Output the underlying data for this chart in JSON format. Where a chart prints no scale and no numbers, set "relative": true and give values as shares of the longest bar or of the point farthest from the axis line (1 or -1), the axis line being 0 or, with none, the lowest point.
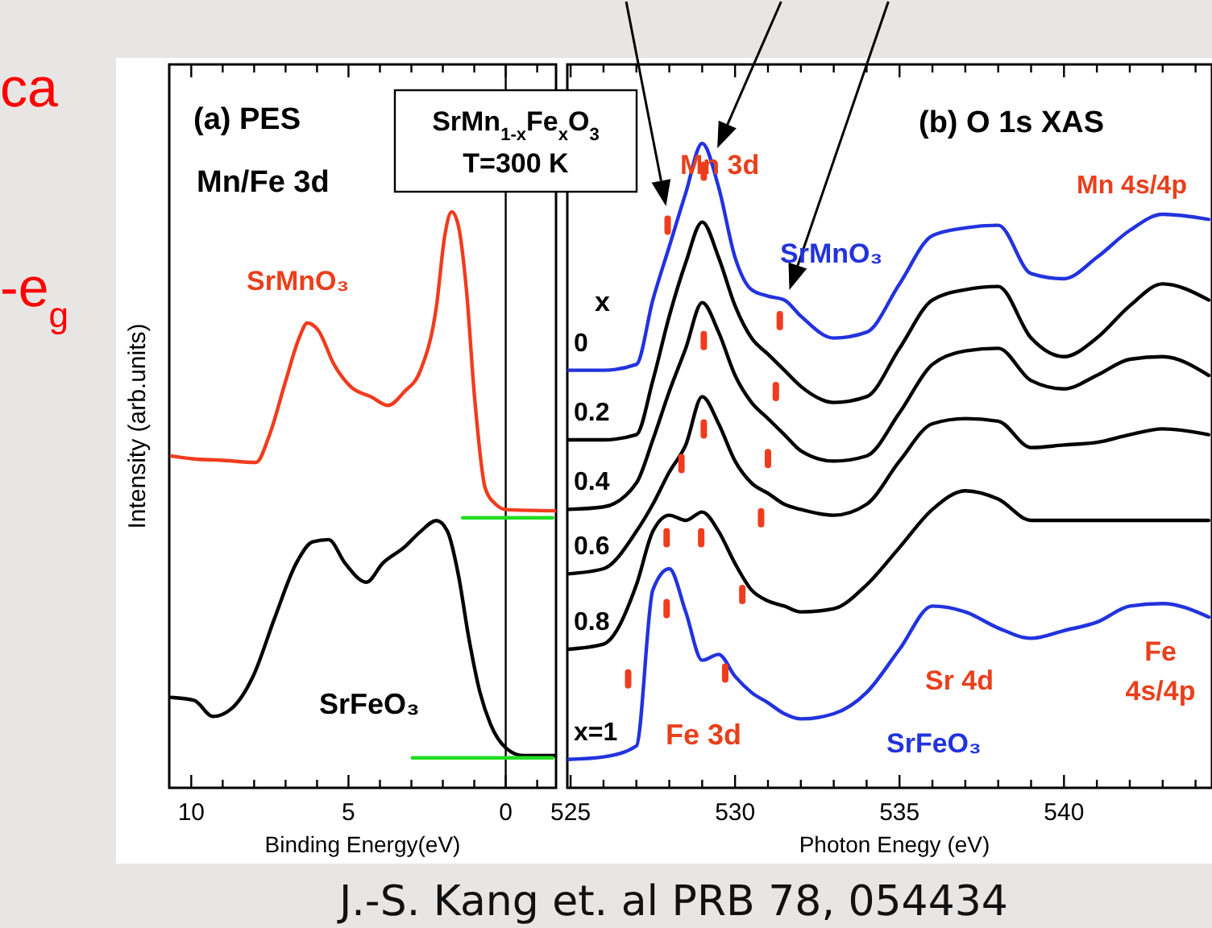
{
  "chart_data": [
    {
      "type": "line",
      "relative": true,
      "xlabel": "Binding Energy(eV)",
      "ylabel": "Intensity (arb.units)",
      "xlim": [
        10.7,
        -1.6
      ],
      "xticks": [
        10,
        {
          "value": 9,
          "label": null
        },
        {
          "value": 8,
          "label": null
        },
        {
          "value": 7,
          "label": null
        },
        {
          "value": 6,
          "label": null
        },
        5,
        {
          "value": 4,
          "label": null
        },
        {
          "value": 3,
          "label": null
        },
        {
          "value": 2,
          "label": null
        },
        {
          "value": 1,
          "label": null
        },
        0,
        {
          "value": -1,
          "label": null
        }
      ],
      "tick_labels": "x",
      "series": [
        {
          "color": "#f03c1e",
          "x": [
            10.63,
            9.91,
            9.06,
            7.94,
            7.51,
            7.0,
            6.57,
            6.31,
            5.97,
            5.45,
            4.94,
            4.25,
            3.74,
            3.22,
            2.71,
            2.2,
            1.94,
            1.72,
            1.51,
            1.25,
            0.99,
            0.65,
            0.31,
            -0.03,
            -1.58
          ],
          "values": [
            0.576,
            0.571,
            0.569,
            0.565,
            0.613,
            0.706,
            0.781,
            0.807,
            0.795,
            0.734,
            0.697,
            0.678,
            0.664,
            0.688,
            0.725,
            0.837,
            0.958,
            1,
            0.977,
            0.865,
            0.678,
            0.52,
            0.492,
            0.483,
            0.481
          ]
        },
        {
          "color": "#000000",
          "x": [
            10.63,
            9.91,
            9.31,
            8.71,
            8.03,
            7.34,
            6.66,
            6.14,
            5.63,
            5.11,
            4.43,
            3.91,
            3.22,
            2.71,
            2.2,
            1.85,
            1.51,
            1.17,
            0.82,
            0.48,
            -0.03,
            -0.55,
            -1.58
          ],
          "values": [
            0.157,
            0.152,
            0.124,
            0.138,
            0.194,
            0.296,
            0.39,
            0.427,
            0.431,
            0.39,
            0.357,
            0.39,
            0.418,
            0.445,
            0.464,
            0.445,
            0.371,
            0.259,
            0.166,
            0.11,
            0.068,
            0.056,
            0.056
          ]
        },
        {
          "color": "#22dd22",
          "x": [
            1.37,
            -1.49
          ],
          "values": [
            0.469,
            0.469
          ]
        },
        {
          "color": "#22dd22",
          "x": [
            2.97,
            -1.49
          ],
          "values": [
            0.052,
            0.052
          ]
        }
      ],
      "ref_lines": [
        {
          "axis": "x",
          "value": 0,
          "color": "#000000"
        }
      ],
      "annotations": [
        "(a) PES",
        "Mn/Fe 3d",
        "SrMnO₃",
        "SrFeO₃",
        "SrMn$_{1-x}$Fe$_{x}$O$_{3}$",
        "T=300 K",
        "ca",
        "-e$_{g}$",
        "J.-S. Kang et. al PRB 78, 054434"
      ]
    },
    {
      "type": "line",
      "relative": true,
      "xlabel": "Photon Enegy (eV)",
      "xlim": [
        524.9,
        544.5
      ],
      "xticks": [
        525,
        {
          "value": 526,
          "label": null
        },
        {
          "value": 527,
          "label": null
        },
        {
          "value": 528,
          "label": null
        },
        {
          "value": 529,
          "label": null
        },
        530,
        {
          "value": 531,
          "label": null
        },
        {
          "value": 532,
          "label": null
        },
        {
          "value": 533,
          "label": null
        },
        {
          "value": 534,
          "label": null
        },
        535,
        {
          "value": 536,
          "label": null
        },
        {
          "value": 537,
          "label": null
        },
        {
          "value": 538,
          "label": null
        },
        {
          "value": 539,
          "label": null
        },
        540,
        {
          "value": 541,
          "label": null
        },
        {
          "value": 542,
          "label": null
        },
        {
          "value": 543,
          "label": null
        },
        {
          "value": 544,
          "label": null
        }
      ],
      "tick_labels": "x",
      "x": [
        524.9,
        526,
        527,
        527.5,
        528,
        528.5,
        529,
        529.5,
        530,
        530.5,
        531,
        531.5,
        532,
        533,
        534,
        535,
        536,
        537,
        538,
        539,
        540,
        541,
        542,
        543,
        544.4
      ],
      "series": [
        {
          "name": "0",
          "color": "#2233dd",
          "values": [
            0.648,
            0.648,
            0.657,
            0.757,
            0.84,
            0.923,
            1,
            0.932,
            0.823,
            0.773,
            0.763,
            0.757,
            0.732,
            0.698,
            0.707,
            0.782,
            0.857,
            0.869,
            0.873,
            0.798,
            0.79,
            0.823,
            0.865,
            0.89,
            0.882
          ]
        },
        {
          "name": "0.2",
          "color": "#000000",
          "values": [
            0.54,
            0.54,
            0.548,
            0.632,
            0.732,
            0.815,
            0.878,
            0.823,
            0.748,
            0.698,
            0.673,
            0.648,
            0.623,
            0.598,
            0.607,
            0.682,
            0.757,
            0.773,
            0.778,
            0.698,
            0.669,
            0.698,
            0.748,
            0.782,
            0.757
          ]
        },
        {
          "name": "0.4",
          "color": "#000000",
          "values": [
            0.432,
            0.436,
            0.473,
            0.54,
            0.615,
            0.682,
            0.753,
            0.707,
            0.64,
            0.598,
            0.573,
            0.548,
            0.523,
            0.507,
            0.515,
            0.582,
            0.657,
            0.678,
            0.682,
            0.632,
            0.619,
            0.64,
            0.665,
            0.669,
            0.64
          ]
        },
        {
          "name": "0.6",
          "color": "#000000",
          "values": [
            0.332,
            0.34,
            0.398,
            0.44,
            0.49,
            0.532,
            0.607,
            0.565,
            0.507,
            0.473,
            0.457,
            0.44,
            0.432,
            0.423,
            0.44,
            0.507,
            0.565,
            0.573,
            0.569,
            0.528,
            0.532,
            0.536,
            0.548,
            0.557,
            0.548
          ]
        },
        {
          "name": "0.8",
          "color": "#000000",
          "values": [
            0.215,
            0.223,
            0.315,
            0.398,
            0.423,
            0.415,
            0.428,
            0.398,
            0.348,
            0.307,
            0.29,
            0.282,
            0.273,
            0.278,
            0.315,
            0.373,
            0.432,
            0.461,
            0.448,
            0.415,
            0.415,
            0.415,
            0.415,
            0.415,
            0.415
          ]
        },
        {
          "name": "x=1",
          "color": "#2233dd",
          "values": [
            0.044,
            0.048,
            0.065,
            0.307,
            0.34,
            0.273,
            0.198,
            0.207,
            0.173,
            0.148,
            0.132,
            0.115,
            0.107,
            0.115,
            0.148,
            0.215,
            0.282,
            0.273,
            0.248,
            0.232,
            0.244,
            0.257,
            0.282,
            0.286,
            0.265
          ]
        },
        {
          "type": "scatter",
          "color": "#f03c1e",
          "x": [
            527.95,
            529.05,
            531.36,
            529.05,
            531.24,
            529.05,
            528.37,
            531.0,
            527.92,
            528.97,
            530.79,
            530.22,
            527.92,
            526.75,
            529.7
          ],
          "values": [
            0.873,
            0.957,
            0.725,
            0.694,
            0.615,
            0.557,
            0.503,
            0.511,
            0.388,
            0.388,
            0.419,
            0.3,
            0.278,
            0.169,
            0.178
          ]
        }
      ],
      "annotations": [
        "(b) O 1s XAS",
        "Mn 3d",
        "SrMnO₃",
        "Mn 4s/4p",
        "x",
        "Fe 3d",
        "SrFeO₃",
        "Sr 4d",
        "Fe\n4s/4p"
      ]
    }
  ]
}
